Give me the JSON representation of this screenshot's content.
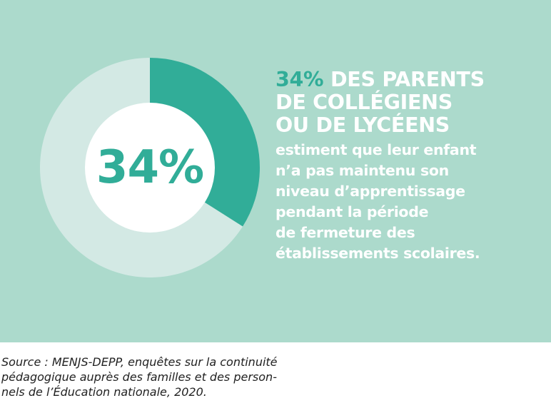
{
  "chart_data": {
    "type": "pie",
    "center_label": "34%",
    "values": [
      34,
      66
    ],
    "categories": [
      "",
      ""
    ],
    "colors": {
      "highlight": "#31ad98",
      "remainder": "#d3e9e4",
      "hole": "#ffffff",
      "background": "#acdacc"
    }
  },
  "headline": {
    "percent": "34%",
    "line1_rest": "DES PARENTS",
    "line2": "DE COLLÉGIENS",
    "line3": "OU DE LYCÉENS"
  },
  "body_lines": [
    "estiment que leur enfant",
    "n’a pas maintenu son",
    "niveau d’apprentissage",
    "pendant la période",
    "de fermeture des",
    "établissements scolaires."
  ],
  "source_lines": [
    "Source : MENJS-DEPP, enquêtes sur la continuité",
    "pédagogique auprès des familles et des person-",
    "nels de l’Éducation nationale, 2020."
  ]
}
